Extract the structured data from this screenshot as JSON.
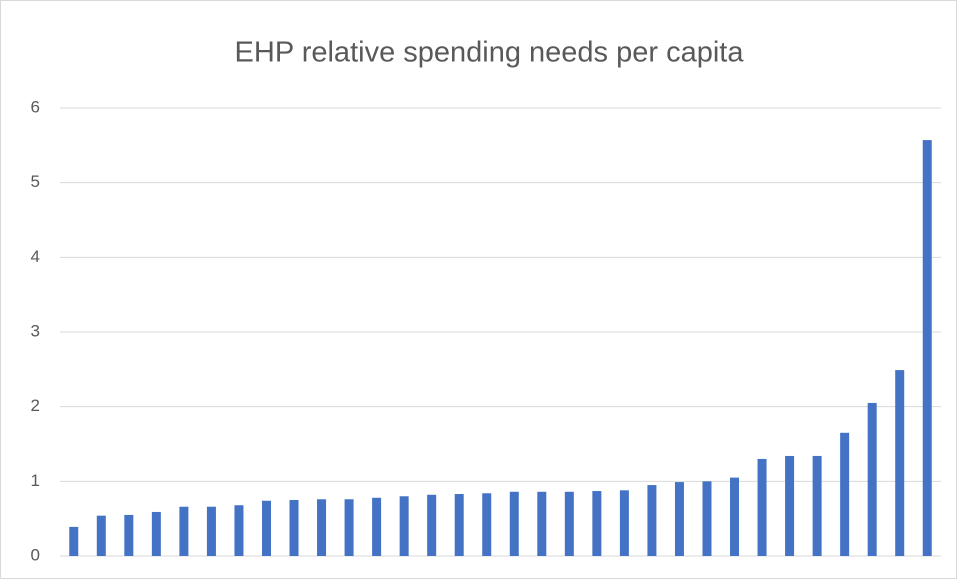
{
  "chart_data": {
    "type": "bar",
    "title": "EHP relative spending needs per capita",
    "categories": [
      null,
      null,
      null,
      null,
      null,
      null,
      null,
      null,
      null,
      null,
      null,
      null,
      null,
      null,
      null,
      null,
      null,
      null,
      null,
      null,
      null,
      null,
      null,
      null,
      null,
      null,
      null,
      null,
      null,
      null,
      null,
      null
    ],
    "values": [
      0.39,
      0.54,
      0.55,
      0.59,
      0.66,
      0.66,
      0.68,
      0.74,
      0.75,
      0.76,
      0.76,
      0.78,
      0.8,
      0.82,
      0.83,
      0.84,
      0.86,
      0.86,
      0.86,
      0.87,
      0.88,
      0.95,
      0.99,
      1.0,
      1.05,
      1.3,
      1.34,
      1.34,
      1.65,
      2.05,
      2.49,
      5.57
    ],
    "color": "#4472c4",
    "ylim": [
      0,
      6
    ],
    "yticks": [
      0,
      1,
      2,
      3,
      4,
      5,
      6
    ],
    "grid": true
  }
}
